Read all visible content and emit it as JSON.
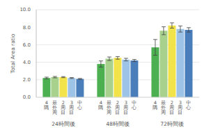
{
  "chart_data": {
    "type": "bar",
    "y_label": "Total Area ratio",
    "categories": [
      "24時間後",
      "48時間後",
      "72時間後"
    ],
    "series": [
      {
        "name": "4隅",
        "color": "#4caf50",
        "values": [
          2.2,
          3.8,
          5.7
        ],
        "errors": [
          0.1,
          0.35,
          0.9
        ]
      },
      {
        "name": "最外周",
        "color": "#a9d18e",
        "values": [
          2.3,
          4.4,
          7.6
        ],
        "errors": [
          0.08,
          0.2,
          0.45
        ]
      },
      {
        "name": "2周目",
        "color": "#f2e34b",
        "values": [
          2.3,
          4.5,
          8.2
        ],
        "errors": [
          0.06,
          0.15,
          0.3
        ]
      },
      {
        "name": "3周目",
        "color": "#9dc3e6",
        "values": [
          2.2,
          4.3,
          7.8
        ],
        "errors": [
          0.05,
          0.15,
          0.35
        ]
      },
      {
        "name": "中心",
        "color": "#4a7ebb",
        "values": [
          2.1,
          4.2,
          7.7
        ],
        "errors": [
          0.05,
          0.12,
          0.25
        ]
      }
    ],
    "ylim": [
      0,
      10
    ],
    "yticks": [
      {
        "value": 0,
        "label": "0.0"
      },
      {
        "value": 2,
        "label": "2.0"
      },
      {
        "value": 4,
        "label": "4.0"
      },
      {
        "value": 6,
        "label": "6.0"
      },
      {
        "value": 8,
        "label": "8.0"
      },
      {
        "value": 10,
        "label": "10.0"
      }
    ],
    "grid": true
  }
}
